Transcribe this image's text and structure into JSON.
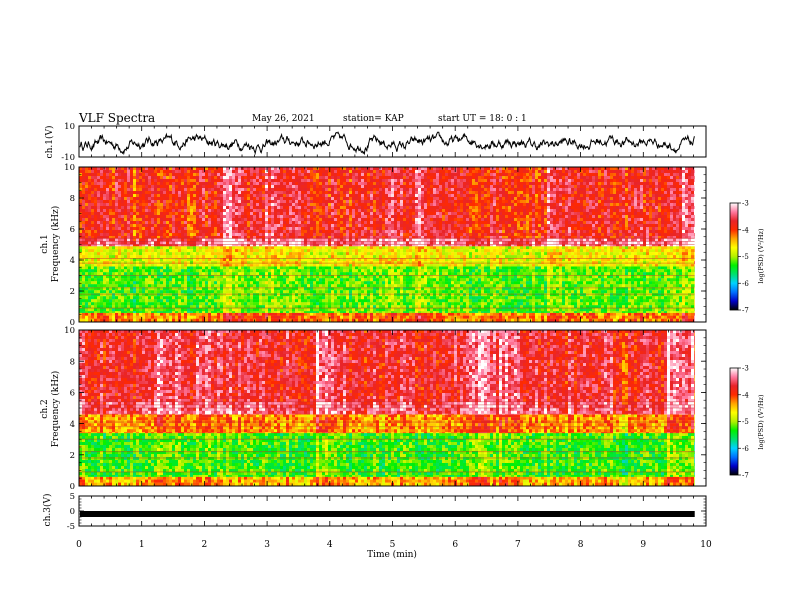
{
  "header": {
    "title": "VLF Spectra",
    "date": "May 26, 2021",
    "station": "station= KAP",
    "start": "start  UT =   18: 0  : 1"
  },
  "colors": {
    "ch1_trace": "#000000",
    "ch3_trace": "#000000",
    "colormap": [
      "#000000",
      "#0000c8",
      "#0070ff",
      "#00d2ff",
      "#00e070",
      "#00f000",
      "#b4f000",
      "#ffff00",
      "#ffa500",
      "#ff2a00",
      "#e8242a",
      "#ff7aa0",
      "#ffffff"
    ]
  },
  "chart_data": [
    {
      "type": "line",
      "panel": "ch1",
      "ylabel": "ch.1(V)",
      "ylim": [
        -10,
        10
      ],
      "yticks": [
        "10",
        "-10"
      ],
      "trace_profile": "noisy waveform oscillating roughly between -6 and 4 V around a mean near 0 V"
    },
    {
      "type": "heatmap",
      "panel": "ch1-spectrogram",
      "ylabel": "ch.1",
      "ylabel2": "Frequency (kHz)",
      "ylim": [
        0,
        10
      ],
      "yticks": [
        "0",
        "2",
        "4",
        "6",
        "8",
        "10"
      ],
      "colorbar": {
        "range": [
          -7,
          -3
        ],
        "ticks": [
          "-3",
          "-4",
          "-5",
          "-6",
          "-7"
        ],
        "label": "log(PSD) (V²/Hz)"
      },
      "bands": [
        {
          "freq_khz": [
            0,
            0.6
          ],
          "level": -4.2
        },
        {
          "freq_khz": [
            0.6,
            3.6
          ],
          "level": -5.2
        },
        {
          "freq_khz": [
            3.6,
            4.9
          ],
          "level": -4.7
        },
        {
          "freq_khz": [
            4.9,
            5.4
          ],
          "level": -3.4
        },
        {
          "freq_khz": [
            5.4,
            10
          ],
          "level": -3.8
        }
      ]
    },
    {
      "type": "heatmap",
      "panel": "ch2-spectrogram",
      "ylabel": "ch.2",
      "ylabel2": "Frequency (kHz)",
      "ylim": [
        0,
        10
      ],
      "yticks": [
        "0",
        "2",
        "4",
        "6",
        "8",
        "10"
      ],
      "colorbar": {
        "range": [
          -7,
          -3
        ],
        "ticks": [
          "-3",
          "-4",
          "-5",
          "-6",
          "-7"
        ],
        "label": "log(PSD) (V²/Hz)"
      },
      "bands": [
        {
          "freq_khz": [
            0,
            0.6
          ],
          "level": -4.4
        },
        {
          "freq_khz": [
            0.6,
            3.4
          ],
          "level": -5.3
        },
        {
          "freq_khz": [
            3.4,
            4.6
          ],
          "level": -4.3
        },
        {
          "freq_khz": [
            4.6,
            5.4
          ],
          "level": -3.5
        },
        {
          "freq_khz": [
            5.4,
            10
          ],
          "level": -3.7
        }
      ]
    },
    {
      "type": "line",
      "panel": "ch3",
      "ylabel": "ch.3(V)",
      "ylim": [
        -5,
        5
      ],
      "yticks": [
        "5",
        "0",
        "-5"
      ],
      "trace_profile": "thick flat band centered near -1 V"
    }
  ],
  "xaxis": {
    "label": "Time (min)",
    "range": [
      0,
      10
    ],
    "data_end": 9.82,
    "ticks": [
      "0",
      "1",
      "2",
      "3",
      "4",
      "5",
      "6",
      "7",
      "8",
      "9",
      "10"
    ]
  }
}
